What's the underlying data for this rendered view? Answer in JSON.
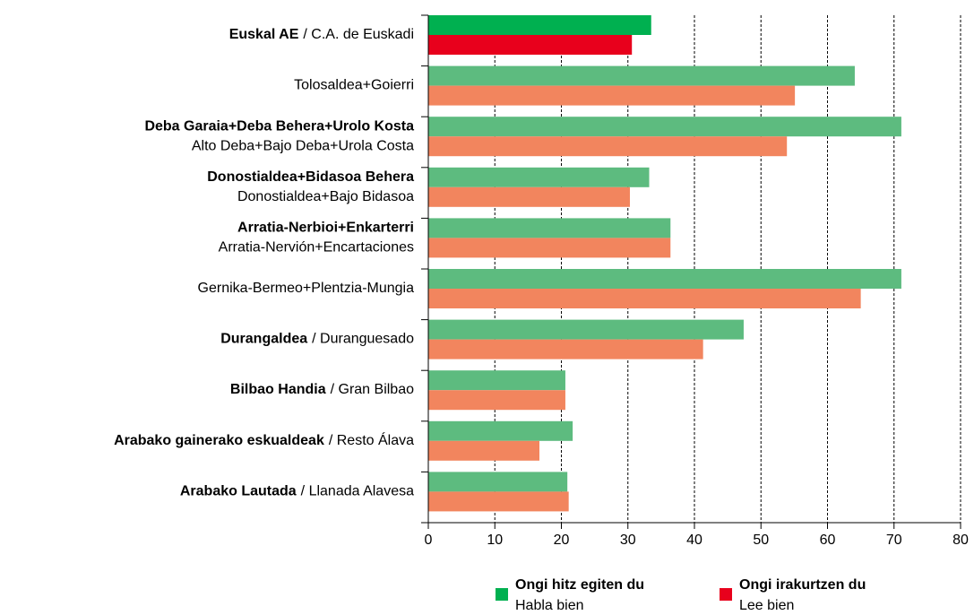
{
  "chart_data": {
    "type": "hbar",
    "categories": [
      {
        "bold": "Euskal AE",
        "rest": "/ C.A. de Euskadi"
      },
      {
        "rest": "Tolosaldea+Goierri"
      },
      {
        "bold": "Deba Garaia+Deba Behera+Urolo Kosta",
        "line2": "Alto Deba+Bajo Deba+Urola Costa"
      },
      {
        "bold": "Donostialdea+Bidasoa Behera",
        "line2": "Donostialdea+Bajo Bidasoa"
      },
      {
        "bold": "Arratia-Nerbioi+Enkarterri",
        "line2": "Arratia-Nervión+Encartaciones"
      },
      {
        "rest": "Gernika-Bermeo+Plentzia-Mungia"
      },
      {
        "bold": "Durangaldea",
        "rest": "/ Duranguesado"
      },
      {
        "bold": "Bilbao Handia",
        "rest": "/ Gran Bilbao"
      },
      {
        "bold": "Arabako gainerako eskualdeak",
        "rest": "/ Resto Álava"
      },
      {
        "bold": "Arabako Lautada",
        "rest": "/ Llanada Alavesa"
      }
    ],
    "series": [
      {
        "name": "Ongi hitz egiten du",
        "subname": "Habla bien",
        "color": "#00b050",
        "colors": [
          "#00b050",
          "#5dbb7f",
          "#5dbb7f",
          "#5dbb7f",
          "#5dbb7f",
          "#5dbb7f",
          "#5dbb7f",
          "#5dbb7f",
          "#5dbb7f",
          "#5dbb7f"
        ],
        "values": [
          33.5,
          64.1,
          71.1,
          33.2,
          36.4,
          71.1,
          47.4,
          20.6,
          21.7,
          20.9
        ]
      },
      {
        "name": "Ongi irakurtzen du",
        "subname": "Lee bien",
        "color": "#e8001c",
        "colors": [
          "#e8001c",
          "#f2855e",
          "#f2855e",
          "#f2855e",
          "#f2855e",
          "#f2855e",
          "#f2855e",
          "#f2855e",
          "#f2855e",
          "#f2855e"
        ],
        "values": [
          30.6,
          55.1,
          53.9,
          30.3,
          36.4,
          65.0,
          41.3,
          20.6,
          16.7,
          21.1
        ]
      }
    ],
    "xlim": [
      0,
      80
    ],
    "xticks": [
      0,
      10,
      20,
      30,
      40,
      50,
      60,
      70,
      80
    ],
    "grid": true
  }
}
